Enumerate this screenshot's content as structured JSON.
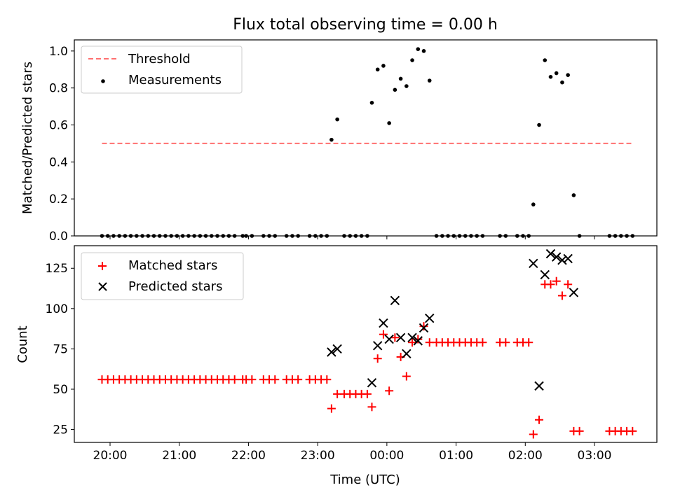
{
  "title": "Flux total observing time = 0.00 h",
  "colors": {
    "threshold": "#ff7070",
    "measurement": "#000000",
    "matched": "#ff0000",
    "predicted": "#000000"
  },
  "chart_data": [
    {
      "type": "scatter",
      "ylabel": "Matched/Predicted stars",
      "ylim": [
        0,
        1.06
      ],
      "yticks": [
        "0.0",
        "0.2",
        "0.4",
        "0.6",
        "0.8",
        "1.0"
      ],
      "legend": {
        "position": "top-left",
        "entries": [
          "Threshold",
          "Measurements"
        ]
      },
      "threshold": {
        "name": "Threshold",
        "value": 0.5,
        "x_from": "19:53",
        "x_to": "03:33",
        "style": "dashed"
      },
      "series": [
        {
          "name": "Measurements",
          "points": [
            [
              "19:53",
              0
            ],
            [
              "19:58",
              0
            ],
            [
              "20:03",
              0
            ],
            [
              "20:08",
              0
            ],
            [
              "20:13",
              0
            ],
            [
              "20:18",
              0
            ],
            [
              "20:23",
              0
            ],
            [
              "20:28",
              0
            ],
            [
              "20:33",
              0
            ],
            [
              "20:38",
              0
            ],
            [
              "20:43",
              0
            ],
            [
              "20:48",
              0
            ],
            [
              "20:53",
              0
            ],
            [
              "20:58",
              0
            ],
            [
              "21:03",
              0
            ],
            [
              "21:08",
              0
            ],
            [
              "21:13",
              0
            ],
            [
              "21:18",
              0
            ],
            [
              "21:23",
              0
            ],
            [
              "21:28",
              0
            ],
            [
              "21:33",
              0
            ],
            [
              "21:38",
              0
            ],
            [
              "21:43",
              0
            ],
            [
              "21:48",
              0
            ],
            [
              "21:55",
              0
            ],
            [
              "21:58",
              0
            ],
            [
              "22:03",
              0
            ],
            [
              "22:13",
              0
            ],
            [
              "22:18",
              0
            ],
            [
              "22:23",
              0
            ],
            [
              "22:33",
              0
            ],
            [
              "22:38",
              0
            ],
            [
              "22:43",
              0
            ],
            [
              "22:53",
              0
            ],
            [
              "22:58",
              0
            ],
            [
              "23:03",
              0
            ],
            [
              "23:08",
              0
            ],
            [
              "23:12",
              0.52
            ],
            [
              "23:17",
              0.63
            ],
            [
              "23:23",
              0
            ],
            [
              "23:28",
              0
            ],
            [
              "23:33",
              0
            ],
            [
              "23:38",
              0
            ],
            [
              "23:43",
              0
            ],
            [
              "23:47",
              0.72
            ],
            [
              "23:52",
              0.9
            ],
            [
              "23:57",
              0.92
            ],
            [
              "00:02",
              0.61
            ],
            [
              "00:07",
              0.79
            ],
            [
              "00:12",
              0.85
            ],
            [
              "00:17",
              0.81
            ],
            [
              "00:22",
              0.95
            ],
            [
              "00:27",
              1.01
            ],
            [
              "00:32",
              1.0
            ],
            [
              "00:37",
              0.84
            ],
            [
              "00:43",
              0
            ],
            [
              "00:48",
              0
            ],
            [
              "00:53",
              0
            ],
            [
              "00:58",
              0
            ],
            [
              "01:03",
              0
            ],
            [
              "01:08",
              0
            ],
            [
              "01:13",
              0
            ],
            [
              "01:18",
              0
            ],
            [
              "01:23",
              0
            ],
            [
              "01:38",
              0
            ],
            [
              "01:43",
              0
            ],
            [
              "01:53",
              0
            ],
            [
              "01:58",
              0
            ],
            [
              "02:03",
              0
            ],
            [
              "02:07",
              0.17
            ],
            [
              "02:12",
              0.6
            ],
            [
              "02:17",
              0.95
            ],
            [
              "02:22",
              0.86
            ],
            [
              "02:27",
              0.88
            ],
            [
              "02:32",
              0.83
            ],
            [
              "02:37",
              0.87
            ],
            [
              "02:42",
              0.22
            ],
            [
              "02:47",
              0
            ],
            [
              "03:13",
              0
            ],
            [
              "03:18",
              0
            ],
            [
              "03:23",
              0
            ],
            [
              "03:28",
              0
            ],
            [
              "03:33",
              0
            ]
          ]
        }
      ]
    },
    {
      "type": "scatter",
      "ylabel": "Count",
      "xlabel": "Time (UTC)",
      "ylim": [
        17,
        139
      ],
      "yticks": [
        "25",
        "50",
        "75",
        "100",
        "125"
      ],
      "xticks": [
        "20:00",
        "21:00",
        "22:00",
        "23:00",
        "00:00",
        "01:00",
        "02:00",
        "03:00"
      ],
      "legend": {
        "position": "top-left",
        "entries": [
          "Matched stars",
          "Predicted stars"
        ]
      },
      "series": [
        {
          "name": "Matched stars",
          "marker": "plus",
          "points": [
            [
              "19:53",
              56
            ],
            [
              "19:58",
              56
            ],
            [
              "20:03",
              56
            ],
            [
              "20:08",
              56
            ],
            [
              "20:13",
              56
            ],
            [
              "20:18",
              56
            ],
            [
              "20:23",
              56
            ],
            [
              "20:28",
              56
            ],
            [
              "20:33",
              56
            ],
            [
              "20:38",
              56
            ],
            [
              "20:43",
              56
            ],
            [
              "20:48",
              56
            ],
            [
              "20:53",
              56
            ],
            [
              "20:58",
              56
            ],
            [
              "21:03",
              56
            ],
            [
              "21:08",
              56
            ],
            [
              "21:13",
              56
            ],
            [
              "21:18",
              56
            ],
            [
              "21:23",
              56
            ],
            [
              "21:28",
              56
            ],
            [
              "21:33",
              56
            ],
            [
              "21:38",
              56
            ],
            [
              "21:43",
              56
            ],
            [
              "21:48",
              56
            ],
            [
              "21:55",
              56
            ],
            [
              "21:58",
              56
            ],
            [
              "22:03",
              56
            ],
            [
              "22:13",
              56
            ],
            [
              "22:18",
              56
            ],
            [
              "22:23",
              56
            ],
            [
              "22:33",
              56
            ],
            [
              "22:38",
              56
            ],
            [
              "22:43",
              56
            ],
            [
              "22:53",
              56
            ],
            [
              "22:58",
              56
            ],
            [
              "23:03",
              56
            ],
            [
              "23:08",
              56
            ],
            [
              "23:12",
              38
            ],
            [
              "23:17",
              47
            ],
            [
              "23:23",
              47
            ],
            [
              "23:28",
              47
            ],
            [
              "23:33",
              47
            ],
            [
              "23:38",
              47
            ],
            [
              "23:43",
              47
            ],
            [
              "23:47",
              39
            ],
            [
              "23:52",
              69
            ],
            [
              "23:57",
              84
            ],
            [
              "00:02",
              49
            ],
            [
              "00:07",
              82
            ],
            [
              "00:12",
              70
            ],
            [
              "00:17",
              58
            ],
            [
              "00:22",
              79
            ],
            [
              "00:27",
              81
            ],
            [
              "00:32",
              89
            ],
            [
              "00:37",
              79
            ],
            [
              "00:43",
              79
            ],
            [
              "00:48",
              79
            ],
            [
              "00:53",
              79
            ],
            [
              "00:58",
              79
            ],
            [
              "01:03",
              79
            ],
            [
              "01:08",
              79
            ],
            [
              "01:13",
              79
            ],
            [
              "01:18",
              79
            ],
            [
              "01:23",
              79
            ],
            [
              "01:38",
              79
            ],
            [
              "01:43",
              79
            ],
            [
              "01:53",
              79
            ],
            [
              "01:58",
              79
            ],
            [
              "02:03",
              79
            ],
            [
              "02:07",
              22
            ],
            [
              "02:12",
              31
            ],
            [
              "02:17",
              115
            ],
            [
              "02:22",
              115
            ],
            [
              "02:27",
              117
            ],
            [
              "02:32",
              108
            ],
            [
              "02:37",
              115
            ],
            [
              "02:42",
              24
            ],
            [
              "02:47",
              24
            ],
            [
              "03:13",
              24
            ],
            [
              "03:18",
              24
            ],
            [
              "03:23",
              24
            ],
            [
              "03:28",
              24
            ],
            [
              "03:33",
              24
            ]
          ]
        },
        {
          "name": "Predicted stars",
          "marker": "x",
          "points": [
            [
              "23:12",
              73
            ],
            [
              "23:17",
              75
            ],
            [
              "23:47",
              54
            ],
            [
              "23:52",
              77
            ],
            [
              "23:57",
              91
            ],
            [
              "00:02",
              81
            ],
            [
              "00:07",
              105
            ],
            [
              "00:12",
              82
            ],
            [
              "00:17",
              72
            ],
            [
              "00:22",
              82
            ],
            [
              "00:27",
              80
            ],
            [
              "00:32",
              88
            ],
            [
              "00:37",
              94
            ],
            [
              "02:07",
              128
            ],
            [
              "02:12",
              52
            ],
            [
              "02:17",
              121
            ],
            [
              "02:22",
              134
            ],
            [
              "02:27",
              132
            ],
            [
              "02:32",
              130
            ],
            [
              "02:37",
              131
            ],
            [
              "02:42",
              110
            ]
          ]
        }
      ]
    }
  ]
}
